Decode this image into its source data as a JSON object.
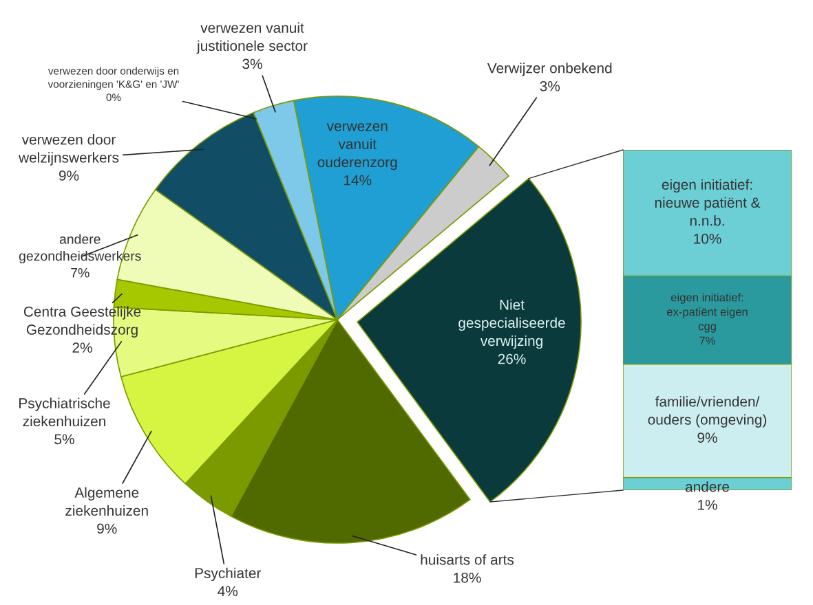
{
  "chart_data": [
    {
      "type": "pie",
      "categories": [
        "Niet gespecialiseerde verwijzing",
        "huisarts of arts",
        "Psychiater",
        "Algemene ziekenhuizen",
        "Psychiatrische ziekenhuizen",
        "Centra Geestelijke Gezondheidszorg",
        "andere gezondheidswerkers",
        "verwezen door welzijnswerkers",
        "verwezen door onderwijs en voorzieningen 'K&G' en 'JW'",
        "verwezen vanuit justitionele sector",
        "verwezen vanuit ouderenzorg",
        "Verwijzer onbekend"
      ],
      "values": [
        26,
        18,
        4,
        9,
        5,
        2,
        7,
        9,
        0,
        3,
        14,
        3
      ],
      "value_labels": [
        "26%",
        "18%",
        "4%",
        "9%",
        "5%",
        "2%",
        "7%",
        "9%",
        "0%",
        "3%",
        "14%",
        "3%"
      ],
      "colors": [
        "#0a3a3c",
        "#506a00",
        "#7a9a00",
        "#d5f542",
        "#e4fa80",
        "#a6c800",
        "#effcb8",
        "#124d66",
        "#1d6f8a",
        "#7ec8ea",
        "#209fd4",
        "#cccccc"
      ]
    },
    {
      "type": "bar",
      "stacked": true,
      "categories": [
        null
      ],
      "series": [
        {
          "name": "andere",
          "color": "#6ccfd6",
          "values": [
            1
          ],
          "value_labels": [
            "1%"
          ]
        },
        {
          "name": "familie/vrienden/ ouders (omgeving)",
          "color": "#cdeef0",
          "values": [
            9
          ],
          "value_labels": [
            "9%"
          ]
        },
        {
          "name": "eigen initiatief: ex-patiënt eigen cgg",
          "color": "#2a9a9e",
          "values": [
            7
          ],
          "value_labels": [
            "7%"
          ]
        },
        {
          "name": "eigen initiatief: nieuwe patiënt & n.n.b.",
          "color": "#6ccfd6",
          "values": [
            10
          ],
          "value_labels": [
            "10%"
          ]
        }
      ]
    }
  ]
}
